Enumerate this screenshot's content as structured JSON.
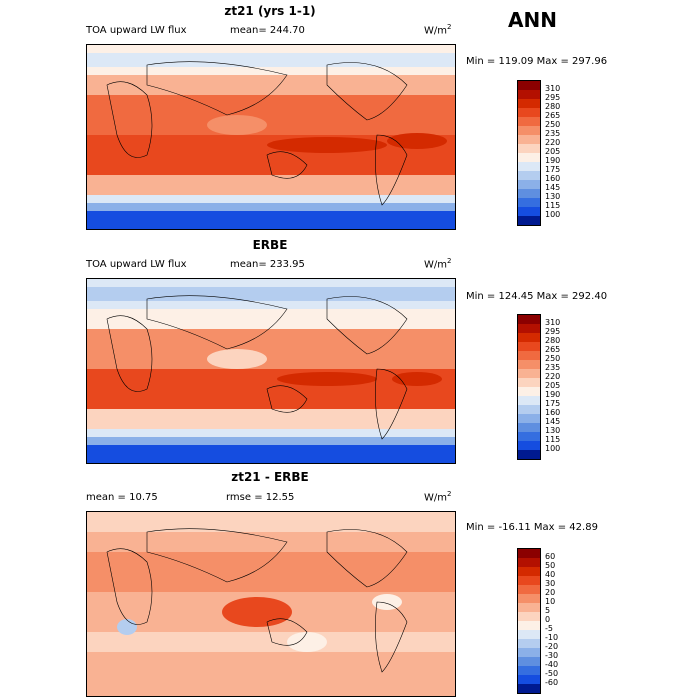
{
  "season": "ANN",
  "panels": [
    {
      "title": "zt21 (yrs 1-1)",
      "left_label": "TOA upward LW flux",
      "mean_label": "mean= 244.70",
      "units": "W/m",
      "units_exp": "2",
      "minmax": "Min = 119.09 Max = 297.96",
      "colorbar_labels": [
        "310",
        "295",
        "280",
        "265",
        "250",
        "235",
        "220",
        "205",
        "190",
        "175",
        "160",
        "145",
        "130",
        "115",
        "100"
      ]
    },
    {
      "title": "ERBE",
      "left_label": "TOA upward LW flux",
      "mean_label": "mean= 233.95",
      "units": "W/m",
      "units_exp": "2",
      "minmax": "Min = 124.45 Max = 292.40",
      "colorbar_labels": [
        "310",
        "295",
        "280",
        "265",
        "250",
        "235",
        "220",
        "205",
        "190",
        "175",
        "160",
        "145",
        "130",
        "115",
        "100"
      ]
    },
    {
      "title": "zt21 - ERBE",
      "left_label": "mean =  10.75",
      "mean_label": "rmse =  12.55",
      "units": "W/m",
      "units_exp": "2",
      "minmax": "Min = -16.11 Max =  42.89",
      "colorbar_labels": [
        "60",
        "50",
        "40",
        "30",
        "20",
        "10",
        "5",
        "0",
        "-5",
        "-10",
        "-20",
        "-30",
        "-40",
        "-50",
        "-60"
      ]
    }
  ],
  "colors": {
    "flux": [
      "#8b0000",
      "#b31000",
      "#d42a00",
      "#e8481e",
      "#f06a40",
      "#f58f68",
      "#f9b293",
      "#fcd4bf",
      "#fdf0e6",
      "#dce8f6",
      "#b4cdef",
      "#8bb0e8",
      "#5f8fe0",
      "#356ee0",
      "#154de0",
      "#0830c0",
      "#001a90"
    ],
    "diff": [
      "#8b0000",
      "#b31000",
      "#d42a00",
      "#e8481e",
      "#f06a40",
      "#f58f68",
      "#f9b293",
      "#fcd4bf",
      "#fdf0e6",
      "#dce8f6",
      "#b4cdef",
      "#8bb0e8",
      "#5f8fe0",
      "#356ee0",
      "#154de0",
      "#0830c0",
      "#001a90"
    ]
  }
}
